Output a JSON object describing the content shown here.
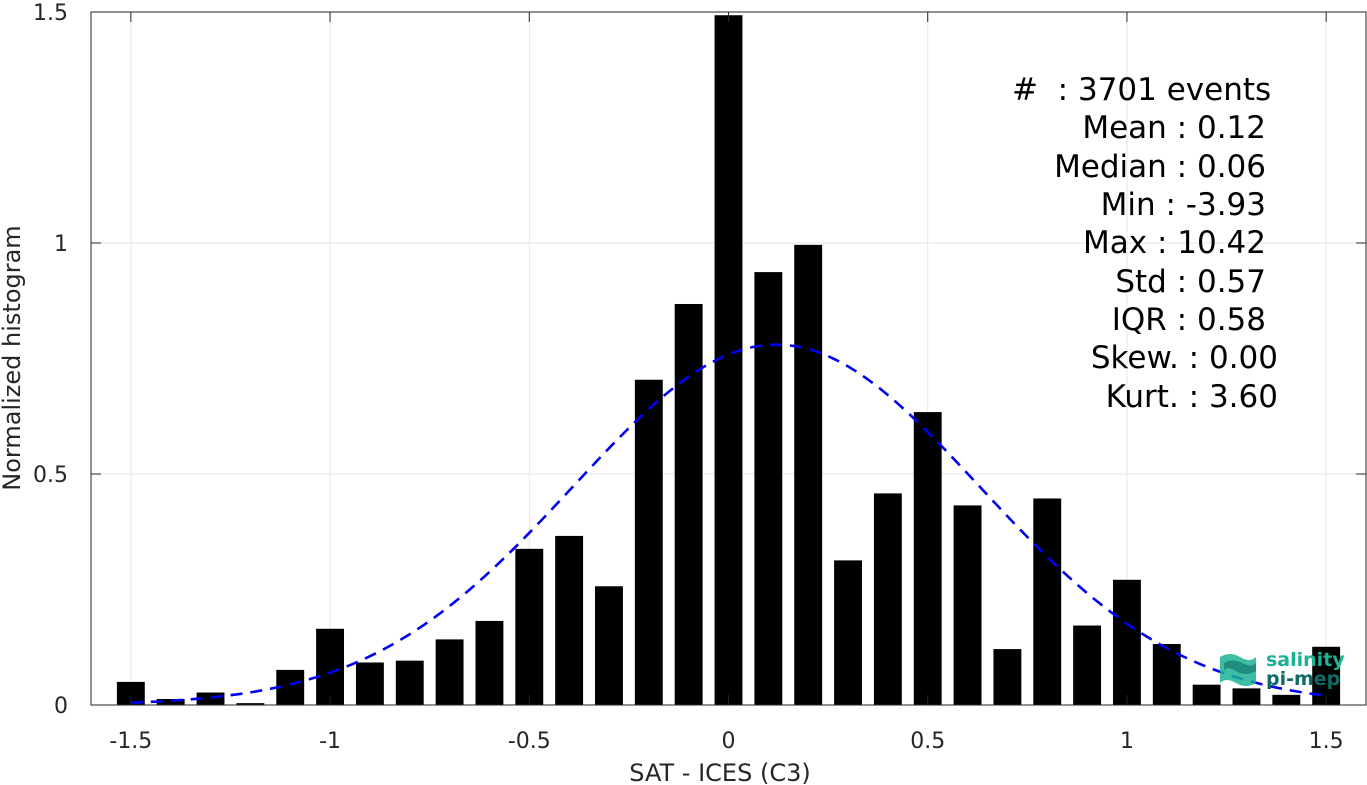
{
  "chart_data": {
    "type": "bar",
    "xlabel": "SAT - ICES (C3)",
    "ylabel": "Normalized histogram",
    "xlim": [
      -1.6,
      1.6
    ],
    "ylim": [
      0,
      1.5
    ],
    "xticks": [
      -1.5,
      -1,
      -0.5,
      0,
      0.5,
      1,
      1.5
    ],
    "xtick_labels": [
      "-1.5",
      "-1",
      "-0.5",
      "0",
      "0.5",
      "1",
      "1.5"
    ],
    "yticks": [
      0,
      0.5,
      1,
      1.5
    ],
    "ytick_labels": [
      "0",
      "0.5",
      "1",
      "1.5"
    ],
    "grid": true,
    "bar_width": 0.07,
    "bar_color": "#000000",
    "fit_color": "#0000ee",
    "series": [
      {
        "type": "bar",
        "x": [
          -1.5,
          -1.4,
          -1.3,
          -1.2,
          -1.1,
          -1.0,
          -0.9,
          -0.8,
          -0.7,
          -0.6,
          -0.5,
          -0.4,
          -0.3,
          -0.2,
          -0.1,
          0.0,
          0.1,
          0.2,
          0.3,
          0.4,
          0.5,
          0.6,
          0.7,
          0.8,
          0.9,
          1.0,
          1.1,
          1.2,
          1.3,
          1.4,
          1.5
        ],
        "values": [
          0.05,
          0.013,
          0.027,
          0.004,
          0.076,
          0.165,
          0.092,
          0.096,
          0.142,
          0.182,
          0.338,
          0.366,
          0.257,
          0.704,
          0.868,
          1.493,
          0.937,
          0.996,
          0.313,
          0.458,
          0.634,
          0.432,
          0.121,
          0.447,
          0.172,
          0.271,
          0.132,
          0.044,
          0.036,
          0.022,
          0.126
        ]
      },
      {
        "type": "line",
        "style": "dashed",
        "mean": 0.12,
        "std": 0.51,
        "peak": 0.78,
        "x_range": [
          -1.5,
          1.5
        ]
      }
    ]
  },
  "stats": {
    "count": "#  : 3701 events",
    "mean": "Mean : 0.12",
    "median": "Median : 0.06",
    "min": "Min : -3.93",
    "max": "Max : 10.42",
    "std": "Std : 0.57",
    "iqr": "IQR : 0.58",
    "skew": "Skew. : 0.00",
    "kurt": "Kurt. : 3.60"
  },
  "logo": {
    "line1": "salinity",
    "line2": "pi-mep",
    "colors": [
      "#1ab394",
      "#0e6b66"
    ]
  }
}
